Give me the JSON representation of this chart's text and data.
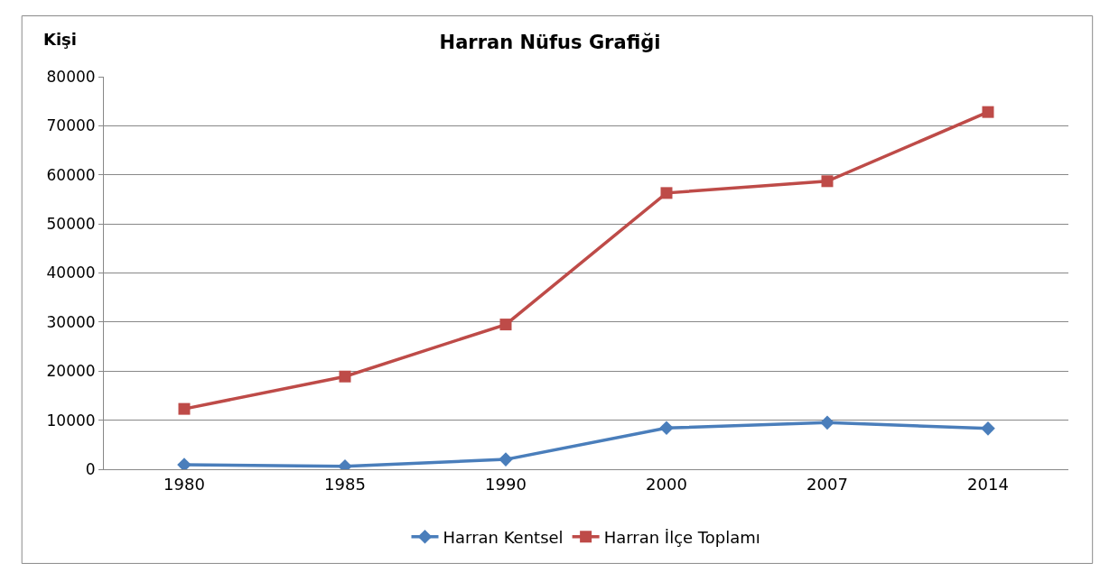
{
  "chart_data": {
    "type": "line",
    "title": "Harran Nüfus Grafiği",
    "ylabel": "Kişi",
    "categories": [
      "1980",
      "1985",
      "1990",
      "2000",
      "2007",
      "2014"
    ],
    "series": [
      {
        "name": "Harran Kentsel",
        "color": "#4a7ebb",
        "marker": "diamond",
        "values": [
          900,
          600,
          2000,
          8400,
          9500,
          8300
        ]
      },
      {
        "name": "Harran İlçe Toplamı",
        "color": "#be4b48",
        "marker": "square",
        "values": [
          12300,
          18900,
          29500,
          56300,
          58700,
          72800
        ]
      }
    ],
    "ylim": [
      0,
      80000
    ],
    "yticks": [
      0,
      10000,
      20000,
      30000,
      40000,
      50000,
      60000,
      70000,
      80000
    ],
    "grid": "y",
    "legend": "bottom",
    "line_style": "solid"
  }
}
